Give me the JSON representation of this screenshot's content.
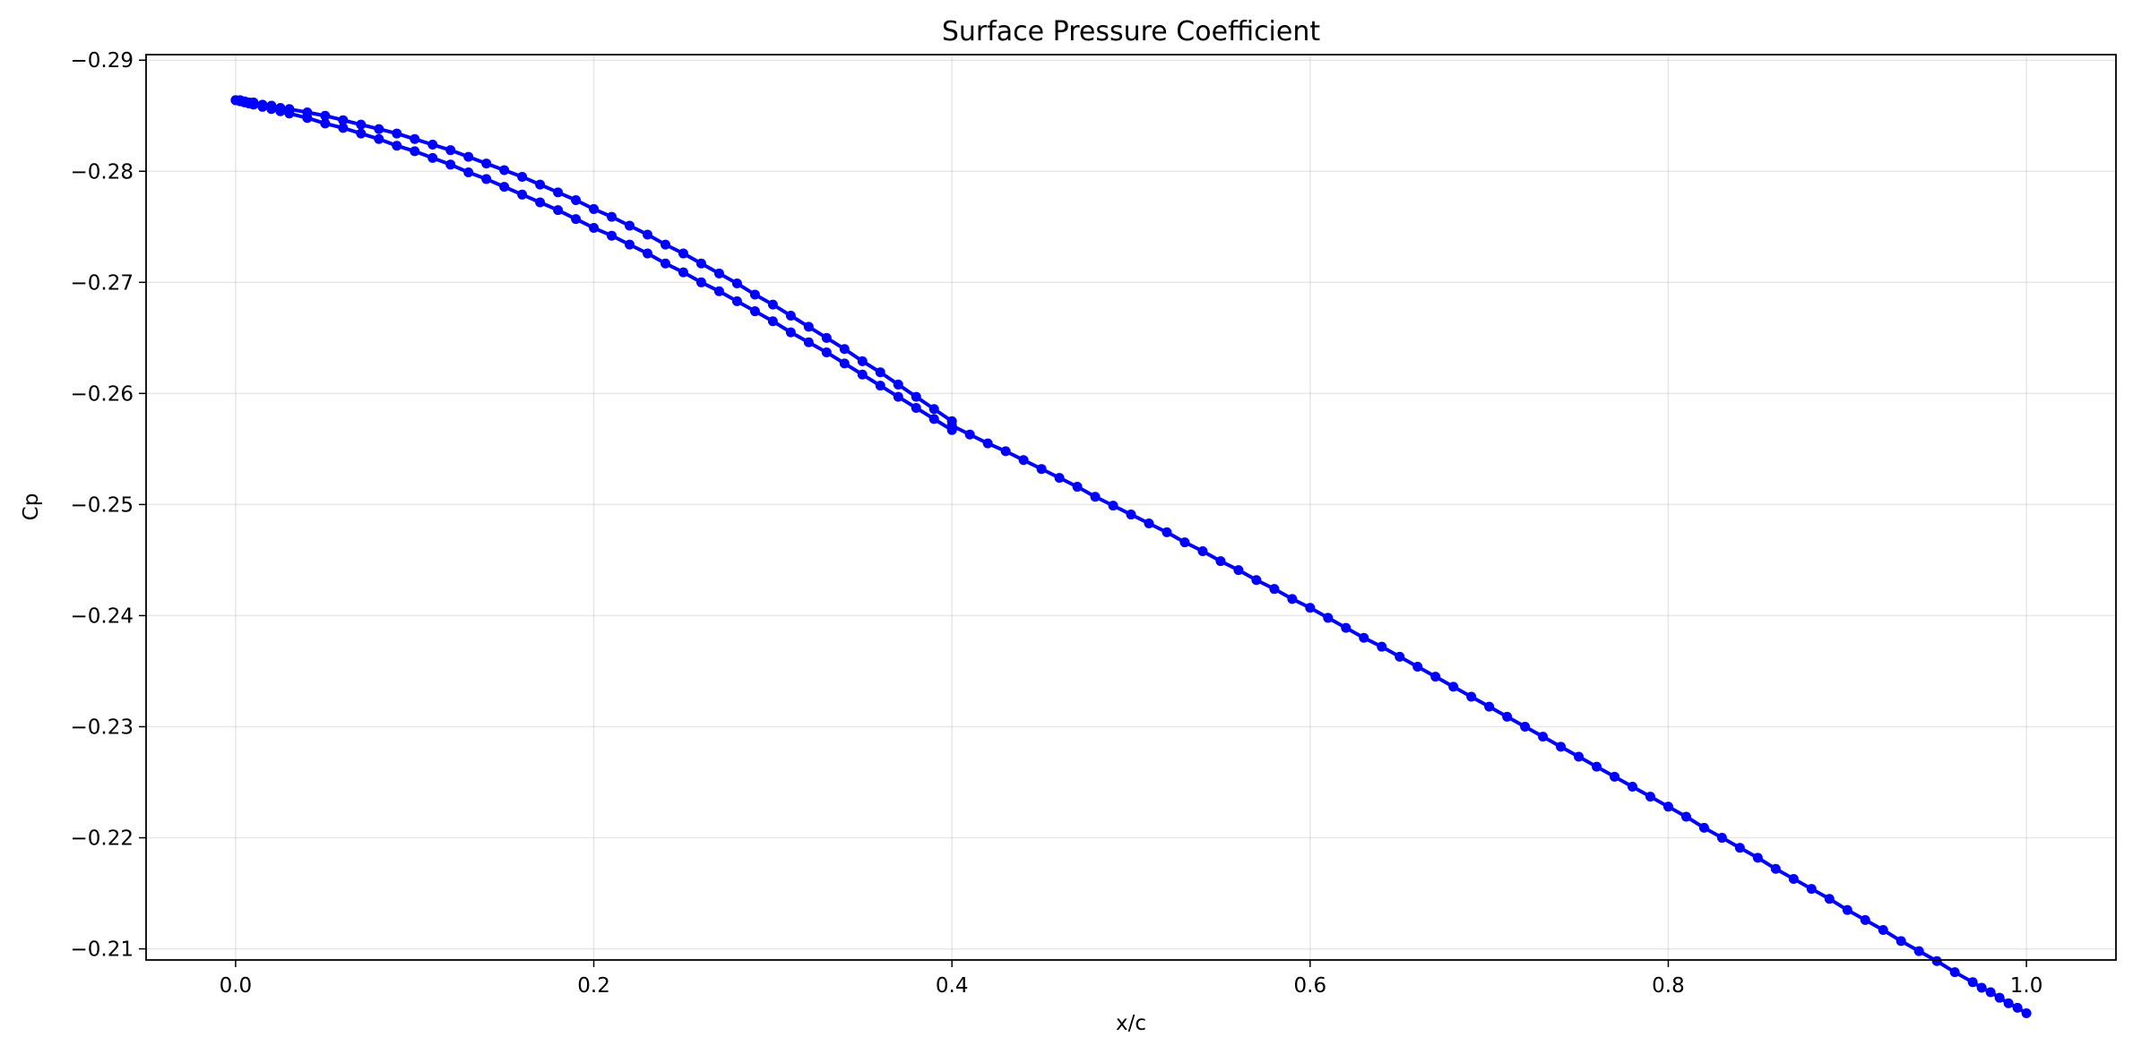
{
  "chart_data": {
    "type": "line",
    "title": "Surface Pressure Coefficient",
    "xlabel": "x/c",
    "ylabel": "Cp",
    "xlim": [
      -0.05,
      1.05
    ],
    "ylim": [
      -0.209,
      -0.2905
    ],
    "y_inverted": true,
    "grid": true,
    "x_ticks": [
      0.0,
      0.2,
      0.4,
      0.6,
      0.8,
      1.0
    ],
    "x_tick_labels": [
      "0.0",
      "0.2",
      "0.4",
      "0.6",
      "0.8",
      "1.0"
    ],
    "y_ticks": [
      -0.21,
      -0.22,
      -0.23,
      -0.24,
      -0.25,
      -0.26,
      -0.27,
      -0.28,
      -0.29
    ],
    "y_tick_labels": [
      "−0.21",
      "−0.22",
      "−0.23",
      "−0.24",
      "−0.25",
      "−0.26",
      "−0.27",
      "−0.28",
      "−0.29"
    ],
    "colors": {
      "series": "#0000ff"
    },
    "marker": "circle",
    "series": [
      {
        "x": [
          0.0,
          0.0025,
          0.005,
          0.0075,
          0.01,
          0.015,
          0.02,
          0.025,
          0.03,
          0.04,
          0.05,
          0.06,
          0.07,
          0.08,
          0.09,
          0.1,
          0.11,
          0.12,
          0.13,
          0.14,
          0.15,
          0.16,
          0.17,
          0.18,
          0.19,
          0.2,
          0.21,
          0.22,
          0.23,
          0.24,
          0.25,
          0.26,
          0.27,
          0.28,
          0.29,
          0.3,
          0.31,
          0.32,
          0.33,
          0.34,
          0.35,
          0.36,
          0.37,
          0.38,
          0.39,
          0.4
        ],
        "y": [
          -0.2864,
          -0.2864,
          -0.2863,
          -0.2862,
          -0.2862,
          -0.286,
          -0.2859,
          -0.2857,
          -0.2856,
          -0.2853,
          -0.285,
          -0.2846,
          -0.2842,
          -0.2838,
          -0.2834,
          -0.2829,
          -0.2824,
          -0.2819,
          -0.2813,
          -0.2807,
          -0.2801,
          -0.2795,
          -0.2788,
          -0.2781,
          -0.2774,
          -0.2766,
          -0.2759,
          -0.2751,
          -0.2743,
          -0.2734,
          -0.2726,
          -0.2717,
          -0.2708,
          -0.2699,
          -0.2689,
          -0.268,
          -0.267,
          -0.266,
          -0.265,
          -0.264,
          -0.2629,
          -0.2619,
          -0.2608,
          -0.2597,
          -0.2586,
          -0.2575
        ]
      },
      {
        "x": [
          0.0,
          0.0025,
          0.005,
          0.0075,
          0.01,
          0.015,
          0.02,
          0.025,
          0.03,
          0.04,
          0.05,
          0.06,
          0.07,
          0.08,
          0.09,
          0.1,
          0.11,
          0.12,
          0.13,
          0.14,
          0.15,
          0.16,
          0.17,
          0.18,
          0.19,
          0.2,
          0.21,
          0.22,
          0.23,
          0.24,
          0.25,
          0.26,
          0.27,
          0.28,
          0.29,
          0.3,
          0.31,
          0.32,
          0.33,
          0.34,
          0.35,
          0.36,
          0.37,
          0.38,
          0.39,
          0.4
        ],
        "y": [
          -0.2864,
          -0.2863,
          -0.2862,
          -0.2861,
          -0.286,
          -0.2858,
          -0.2856,
          -0.2854,
          -0.2852,
          -0.2848,
          -0.2843,
          -0.2839,
          -0.2834,
          -0.2829,
          -0.2823,
          -0.2818,
          -0.2812,
          -0.2806,
          -0.2799,
          -0.2793,
          -0.2786,
          -0.2779,
          -0.2772,
          -0.2765,
          -0.2757,
          -0.2749,
          -0.2742,
          -0.2734,
          -0.2726,
          -0.2717,
          -0.2709,
          -0.27,
          -0.2692,
          -0.2683,
          -0.2674,
          -0.2665,
          -0.2655,
          -0.2646,
          -0.2637,
          -0.2627,
          -0.2617,
          -0.2607,
          -0.2597,
          -0.2587,
          -0.2577,
          -0.2567
        ]
      },
      {
        "x": [
          0.4,
          0.41,
          0.42,
          0.43,
          0.44,
          0.45,
          0.46,
          0.47,
          0.48,
          0.49,
          0.5,
          0.51,
          0.52,
          0.53,
          0.54,
          0.55,
          0.56,
          0.57,
          0.58,
          0.59,
          0.6,
          0.61,
          0.62,
          0.63,
          0.64,
          0.65,
          0.66,
          0.67,
          0.68,
          0.69,
          0.7,
          0.71,
          0.72,
          0.73,
          0.74,
          0.75,
          0.76,
          0.77,
          0.78,
          0.79,
          0.8,
          0.81,
          0.82,
          0.83,
          0.84,
          0.85,
          0.86,
          0.87,
          0.88,
          0.89,
          0.9,
          0.91,
          0.92,
          0.93,
          0.94,
          0.95,
          0.96,
          0.97,
          0.975,
          0.98,
          0.985,
          0.99,
          0.995,
          1.0
        ],
        "y": [
          -0.2571,
          -0.2563,
          -0.2555,
          -0.2548,
          -0.254,
          -0.2532,
          -0.2524,
          -0.2516,
          -0.2507,
          -0.2499,
          -0.2491,
          -0.2483,
          -0.2475,
          -0.2466,
          -0.2458,
          -0.2449,
          -0.2441,
          -0.2432,
          -0.2424,
          -0.2415,
          -0.2407,
          -0.2398,
          -0.2389,
          -0.238,
          -0.2372,
          -0.2363,
          -0.2354,
          -0.2345,
          -0.2336,
          -0.2327,
          -0.2318,
          -0.2309,
          -0.23,
          -0.2291,
          -0.2282,
          -0.2273,
          -0.2264,
          -0.2255,
          -0.2246,
          -0.2237,
          -0.2228,
          -0.2219,
          -0.2209,
          -0.22,
          -0.2191,
          -0.2182,
          -0.2172,
          -0.2163,
          -0.2154,
          -0.2145,
          -0.2135,
          -0.2126,
          -0.2117,
          -0.2107,
          -0.2098,
          -0.2089,
          -0.2079,
          -0.207,
          -0.2065,
          -0.2061,
          -0.2056,
          -0.2051,
          -0.2047,
          -0.2042
        ]
      }
    ]
  }
}
